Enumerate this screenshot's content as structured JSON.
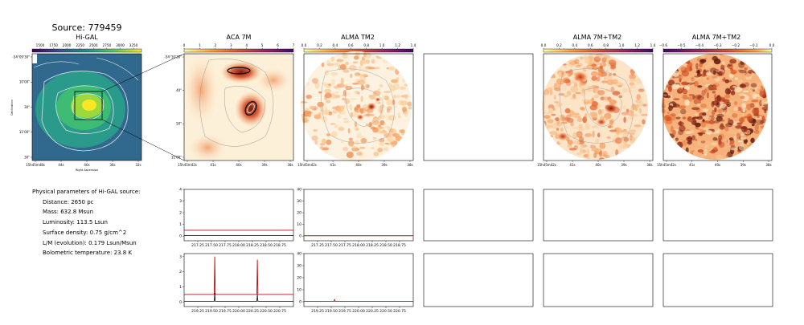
{
  "source_title": "Source: 779459",
  "params": {
    "header": "Physical parameters of Hi-GAL source:",
    "lines": [
      "Distance: 2650 pc",
      "Mass: 632.8 Msun",
      "Luminosity: 113.5 Lsun",
      "Surface density: 0.75 g/cm^2",
      "L/M (evolution): 0.179 Lsun/Msun",
      "Bolometric temperature: 23.8 K"
    ]
  },
  "colors": {
    "inferno": "#f7d9a6",
    "viridis_mid": "#35b779",
    "spec_line": "#b01212"
  },
  "chart_data": [
    {
      "type": "heatmap",
      "title": "Hi-GAL",
      "colormap": "viridis",
      "colorbar_ticks": [
        "1500",
        "1750",
        "2000",
        "2250",
        "2500",
        "2750",
        "3000",
        "3250"
      ],
      "xlabel": "Right Ascension",
      "ylabel": "Declination",
      "xticks": [
        "15h45m48s",
        "44s",
        "40s",
        "36s",
        "32s"
      ],
      "yticks": [
        "-54°09'30\"",
        "10'00\"",
        "30\"",
        "11'00\"",
        "30\""
      ]
    },
    {
      "type": "heatmap",
      "title": "ACA 7M",
      "colormap": "inferno_r",
      "colorbar_ticks": [
        "0",
        "1",
        "2",
        "3",
        "4",
        "5",
        "6",
        "7"
      ],
      "xticks": [
        "15h45m42s",
        "41s",
        "40s",
        "39s",
        "38s"
      ],
      "yticks": [
        "-54°10'30\"",
        "40\"",
        "50\"",
        "11'00\""
      ]
    },
    {
      "type": "heatmap",
      "title": "ALMA TM2",
      "colormap": "inferno_r",
      "colorbar_ticks": [
        "0.0",
        "0.2",
        "0.4",
        "0.6",
        "0.8",
        "1.0",
        "1.2",
        "1.4"
      ],
      "xticks": [
        "15h45m42s",
        "41s",
        "40s",
        "39s",
        "38s"
      ]
    },
    {
      "type": "heatmap",
      "title": "ALMA 7M+TM2",
      "colormap": "inferno_r",
      "colorbar_ticks": [
        "0.0",
        "0.2",
        "0.4",
        "0.6",
        "0.8",
        "1.0",
        "1.2",
        "1.4"
      ],
      "xticks": [
        "15h45m42s",
        "41s",
        "40s",
        "39s",
        "38s"
      ]
    },
    {
      "type": "heatmap",
      "title": "ALMA 7M+TM2",
      "colormap": "inferno_r",
      "colorbar_ticks": [
        "−0.6",
        "−0.5",
        "−0.4",
        "−0.3",
        "−0.2",
        "−0.1",
        "0.0"
      ],
      "xticks": [
        "15h45m42s",
        "41s",
        "40s",
        "39s",
        "38s"
      ]
    },
    {
      "type": "line",
      "panel": "ACA 7M spectrum (upper)",
      "xticks": [
        "217.25",
        "217.50",
        "217.75",
        "218.00",
        "218.25",
        "218.50",
        "218.75"
      ],
      "yticks": [
        "0",
        "1",
        "2",
        "3",
        "4"
      ],
      "xlim": [
        217.0,
        219.0
      ],
      "ylim": [
        -0.4,
        4.0
      ],
      "series": [
        {
          "x": [
            217.0,
            218.0,
            218.5,
            219.0
          ],
          "y": [
            0.5,
            0.5,
            0.5,
            0.5
          ]
        },
        {
          "x": [
            217.0,
            219.0
          ],
          "y": [
            0.05,
            0.05
          ]
        }
      ]
    },
    {
      "type": "line",
      "panel": "ALMA TM2 spectrum (upper)",
      "xticks": [
        "217.25",
        "217.50",
        "217.75",
        "218.00",
        "218.25",
        "218.50",
        "218.75"
      ],
      "yticks": [
        "0",
        "10",
        "20",
        "30",
        "40"
      ],
      "xlim": [
        217.0,
        219.0
      ],
      "ylim": [
        -4,
        40
      ],
      "series": [
        {
          "x": [
            217.0,
            219.0
          ],
          "y": [
            0.3,
            0.3
          ]
        }
      ]
    },
    {
      "type": "line",
      "panel": "ACA 7M spectrum (lower)",
      "xticks": [
        "219.25",
        "219.50",
        "219.75",
        "220.00",
        "220.25",
        "220.50",
        "220.75"
      ],
      "yticks": [
        "0",
        "1",
        "2",
        "3"
      ],
      "xlim": [
        219.0,
        221.0
      ],
      "ylim": [
        -0.3,
        3.2
      ],
      "series": [
        {
          "x": [
            219.0,
            219.55,
            219.56,
            219.57,
            220.33,
            220.34,
            220.35,
            221.0
          ],
          "y": [
            0.5,
            0.5,
            3.0,
            0.5,
            0.5,
            2.8,
            0.5,
            0.5
          ]
        },
        {
          "x": [
            219.0,
            219.55,
            219.56,
            219.57,
            220.33,
            220.34,
            220.35,
            221.0
          ],
          "y": [
            0.05,
            0.05,
            0.6,
            0.05,
            0.05,
            0.5,
            0.05,
            0.05
          ]
        }
      ]
    },
    {
      "type": "line",
      "panel": "ALMA TM2 spectrum (lower)",
      "xticks": [
        "219.25",
        "219.50",
        "219.75",
        "220.00",
        "220.25",
        "220.50",
        "220.75"
      ],
      "yticks": [
        "0",
        "10",
        "20",
        "30",
        "40"
      ],
      "xlim": [
        219.0,
        221.0
      ],
      "ylim": [
        -4,
        40
      ],
      "series": [
        {
          "x": [
            219.0,
            219.55,
            219.56,
            219.57,
            221.0
          ],
          "y": [
            0.3,
            0.3,
            1.8,
            0.3,
            0.3
          ]
        }
      ]
    }
  ]
}
